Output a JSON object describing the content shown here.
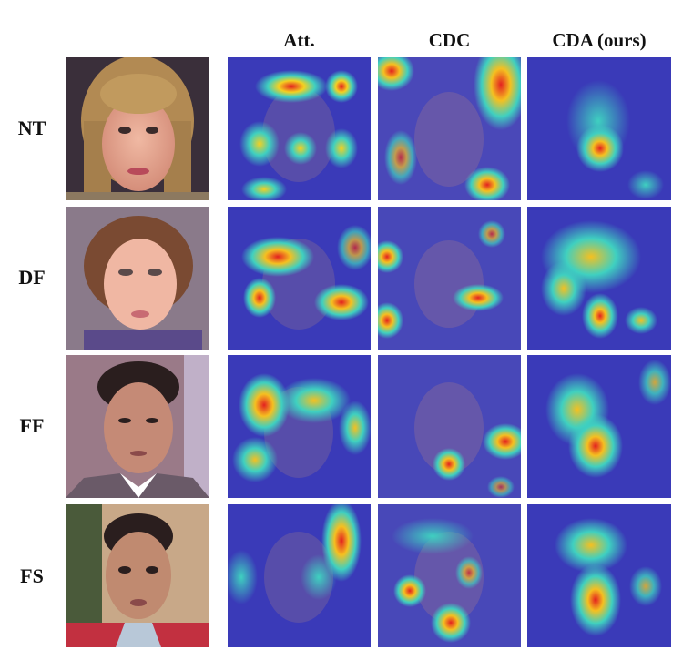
{
  "columns": [
    "",
    "Att.",
    "CDC",
    "CDA (ours)"
  ],
  "rows": [
    "NT",
    "DF",
    "FF",
    "FS"
  ]
}
